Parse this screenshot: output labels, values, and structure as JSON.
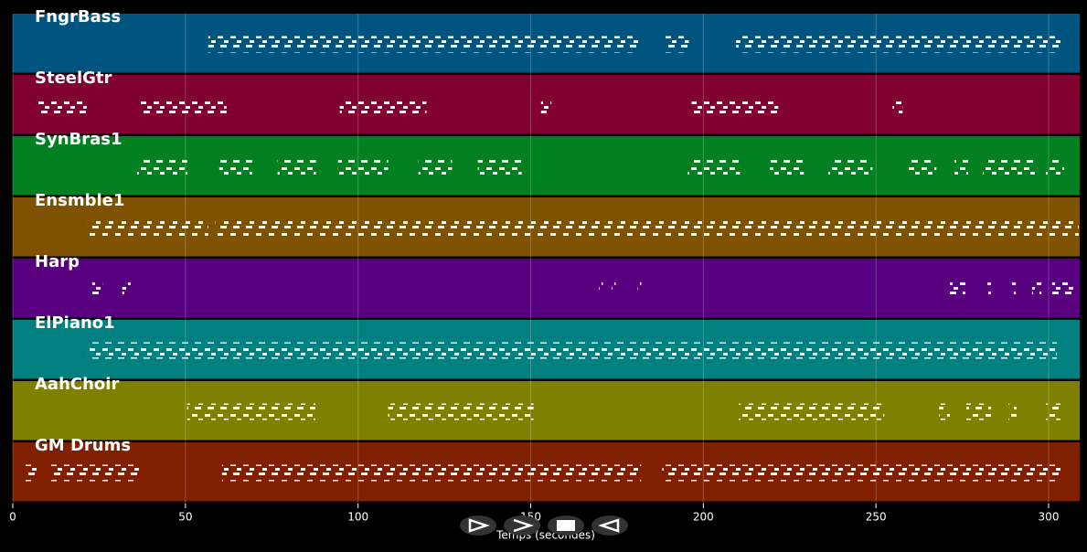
{
  "chart_data": {
    "type": "pianoroll",
    "x_label": "Temps (secondes)",
    "xlim": [
      0,
      309
    ],
    "xticks": [
      0,
      50,
      100,
      150,
      200,
      250,
      300
    ],
    "grid": true,
    "tracks": [
      {
        "name": "FngrBass",
        "color": "#005580",
        "phrases": [
          [
            56.6,
            181.5
          ],
          [
            188.6,
            195.8
          ],
          [
            209.5,
            303.7
          ]
        ]
      },
      {
        "name": "SteelGtr",
        "color": "#800030",
        "phrases": [
          [
            7.4,
            21.4
          ],
          [
            36.8,
            61.9
          ],
          [
            94.7,
            119.8
          ],
          [
            153,
            156
          ],
          [
            196.6,
            221.7
          ],
          [
            254.8,
            257.7
          ]
        ]
      },
      {
        "name": "SynBras1",
        "color": "#008020",
        "phrases": [
          [
            36,
            50.5
          ],
          [
            59.8,
            69.3
          ],
          [
            76.7,
            87.8
          ],
          [
            94.2,
            108.7
          ],
          [
            117.5,
            127.2
          ],
          [
            134.7,
            147.4
          ],
          [
            195.5,
            210.6
          ],
          [
            219.3,
            229.1
          ],
          [
            236.2,
            249
          ],
          [
            259.5,
            267.5
          ],
          [
            272.8,
            276.7
          ],
          [
            281,
            296.6
          ],
          [
            299.2,
            304.5
          ]
        ]
      },
      {
        "name": "Ensmble1",
        "color": "#7f5200",
        "phrases": [
          [
            21.7,
            56.6
          ],
          [
            58.7,
            308.7
          ]
        ]
      },
      {
        "name": "Harp",
        "color": "#580080",
        "phrases": [
          [
            23,
            26
          ],
          [
            31.7,
            34.1
          ],
          [
            169.8,
            170.9
          ],
          [
            173.5,
            174.6
          ],
          [
            181,
            182
          ],
          [
            271.4,
            275.9
          ],
          [
            282.3,
            283.3
          ],
          [
            289.4,
            290.5
          ],
          [
            295.2,
            297.9
          ],
          [
            301,
            307.1
          ]
        ]
      },
      {
        "name": "ElPiano1",
        "color": "#008080",
        "phrases": [
          [
            21.7,
            302.4
          ]
        ]
      },
      {
        "name": "AahChoir",
        "color": "#808000",
        "phrases": [
          [
            50.5,
            87.6
          ],
          [
            108.7,
            150.8
          ],
          [
            210.3,
            252.4
          ],
          [
            268.3,
            271.4
          ],
          [
            276.2,
            283.3
          ],
          [
            288.4,
            290.7
          ],
          [
            299.2,
            303.7
          ]
        ]
      },
      {
        "name": "GM Drums",
        "color": "#802000",
        "phrases": [
          [
            3.4,
            6.9
          ],
          [
            10.8,
            36.5
          ],
          [
            60.6,
            182
          ],
          [
            188.1,
            303.7
          ]
        ]
      }
    ]
  }
}
